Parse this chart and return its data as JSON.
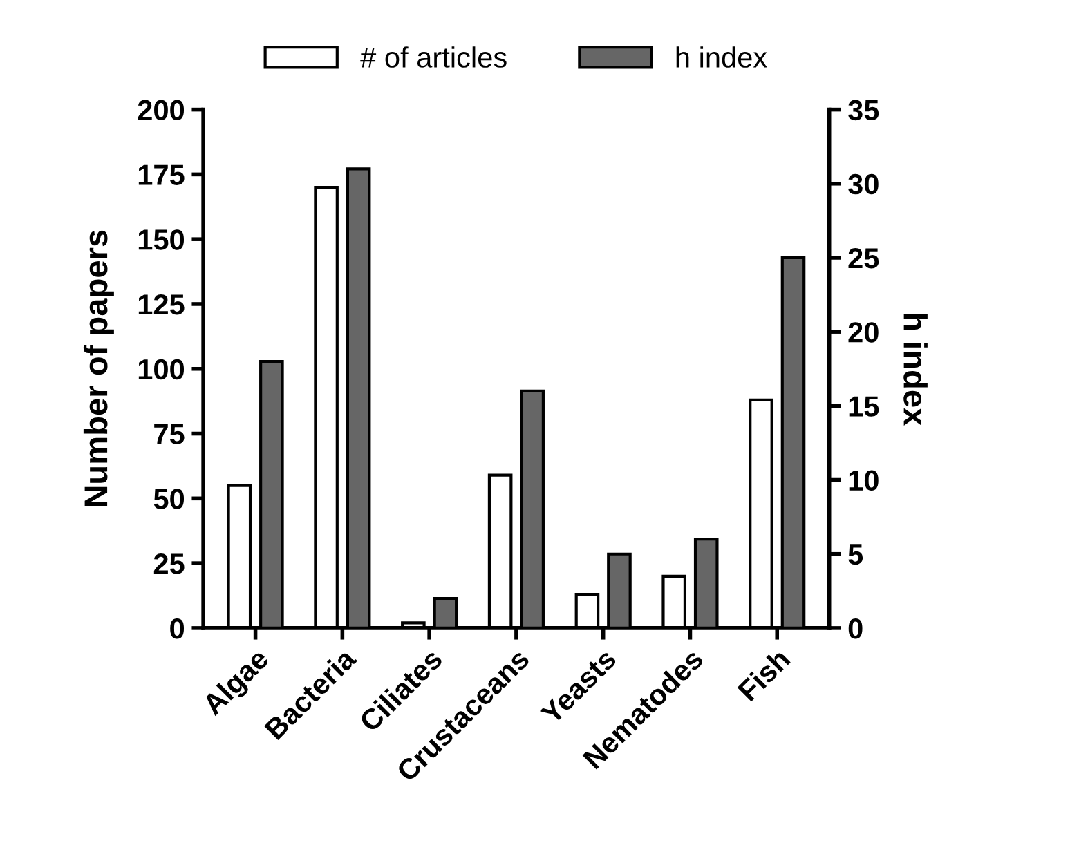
{
  "chart_data": {
    "type": "bar",
    "categories": [
      "Algae",
      "Bacteria",
      "Ciliates",
      "Crustaceans",
      "Yeasts",
      "Nematodes",
      "Fish"
    ],
    "ylabel": "Number of papers",
    "y2label": "h index",
    "series": [
      {
        "name": "# of articles",
        "color": "#ffffff",
        "values": [
          55,
          170,
          2,
          59,
          13,
          20,
          88
        ]
      },
      {
        "name": "h index",
        "color": "#666666",
        "axis": "y2",
        "values": [
          18,
          31,
          2,
          16,
          5,
          6,
          25
        ]
      }
    ],
    "ylim": [
      0,
      200
    ],
    "yticks": [
      0,
      25,
      50,
      75,
      100,
      125,
      150,
      175,
      200
    ],
    "y2lim": [
      0,
      35
    ],
    "y2ticks": [
      0,
      5,
      10,
      15,
      20,
      25,
      30,
      35
    ],
    "grid": false,
    "legend": "top"
  }
}
